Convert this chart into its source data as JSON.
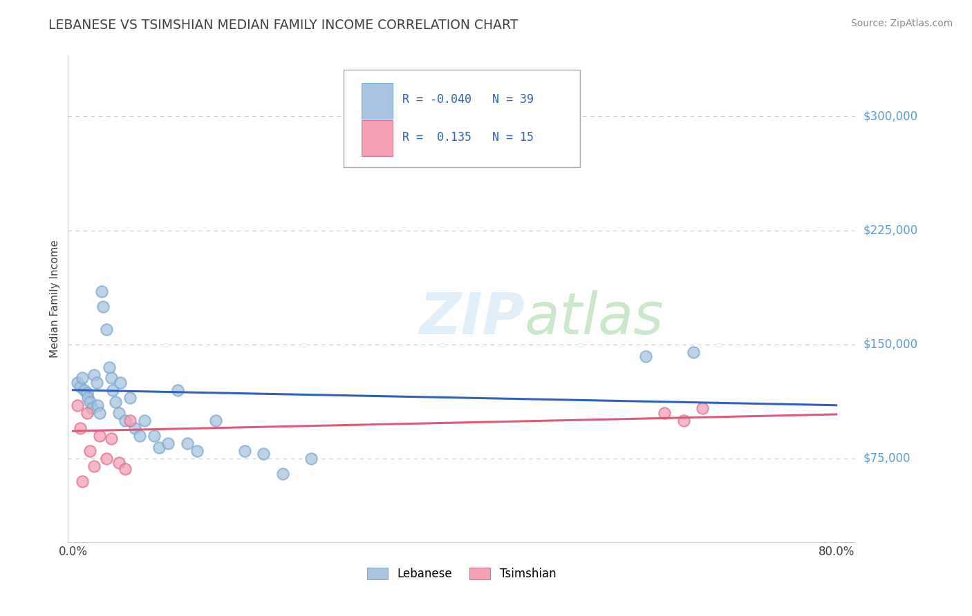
{
  "title": "LEBANESE VS TSIMSHIAN MEDIAN FAMILY INCOME CORRELATION CHART",
  "source": "Source: ZipAtlas.com",
  "ylabel": "Median Family Income",
  "xlim": [
    -0.005,
    0.82
  ],
  "ylim": [
    20000,
    340000
  ],
  "yticks": [
    75000,
    150000,
    225000,
    300000
  ],
  "ytick_labels": [
    "$75,000",
    "$150,000",
    "$225,000",
    "$300,000"
  ],
  "xtick_positions": [
    0.0,
    0.8
  ],
  "xtick_labels": [
    "0.0%",
    "80.0%"
  ],
  "background_color": "#ffffff",
  "grid_color": "#c8c8c8",
  "axis_color": "#5b9bd5",
  "title_color": "#404040",
  "source_color": "#888888",
  "lebanese_fill": "#a8c4e0",
  "lebanese_edge": "#7aaace",
  "tsimshian_fill": "#f4a0b5",
  "tsimshian_edge": "#e07090",
  "lebanese_line_color": "#3060c0",
  "tsimshian_line_color": "#e05878",
  "lebanese_R": -0.04,
  "lebanese_N": 39,
  "tsimshian_R": 0.135,
  "tsimshian_N": 15,
  "lebanese_x": [
    0.005,
    0.008,
    0.01,
    0.012,
    0.015,
    0.016,
    0.018,
    0.02,
    0.022,
    0.025,
    0.026,
    0.028,
    0.03,
    0.032,
    0.035,
    0.038,
    0.04,
    0.042,
    0.045,
    0.048,
    0.05,
    0.055,
    0.06,
    0.065,
    0.07,
    0.075,
    0.085,
    0.09,
    0.1,
    0.11,
    0.12,
    0.13,
    0.15,
    0.18,
    0.2,
    0.22,
    0.25,
    0.6,
    0.65
  ],
  "lebanese_y": [
    125000,
    122000,
    128000,
    120000,
    118000,
    115000,
    112000,
    108000,
    130000,
    125000,
    110000,
    105000,
    185000,
    175000,
    160000,
    135000,
    128000,
    120000,
    112000,
    105000,
    125000,
    100000,
    115000,
    95000,
    90000,
    100000,
    90000,
    82000,
    85000,
    120000,
    85000,
    80000,
    100000,
    80000,
    78000,
    65000,
    75000,
    142000,
    145000
  ],
  "tsimshian_x": [
    0.005,
    0.008,
    0.01,
    0.015,
    0.018,
    0.022,
    0.028,
    0.035,
    0.04,
    0.048,
    0.055,
    0.06,
    0.62,
    0.64,
    0.66
  ],
  "tsimshian_y": [
    110000,
    95000,
    60000,
    105000,
    80000,
    70000,
    90000,
    75000,
    88000,
    72000,
    68000,
    100000,
    105000,
    100000,
    108000
  ],
  "leb_trend_x0": 0.0,
  "leb_trend_x1": 0.8,
  "leb_trend_y0": 120000,
  "leb_trend_y1": 110000,
  "tsi_trend_x0": 0.0,
  "tsi_trend_x1": 0.8,
  "tsi_trend_y0": 93000,
  "tsi_trend_y1": 104000,
  "marker_size": 140,
  "marker_linewidth": 1.5,
  "watermark_color": "#cce5f5",
  "watermark_alpha": 0.6
}
